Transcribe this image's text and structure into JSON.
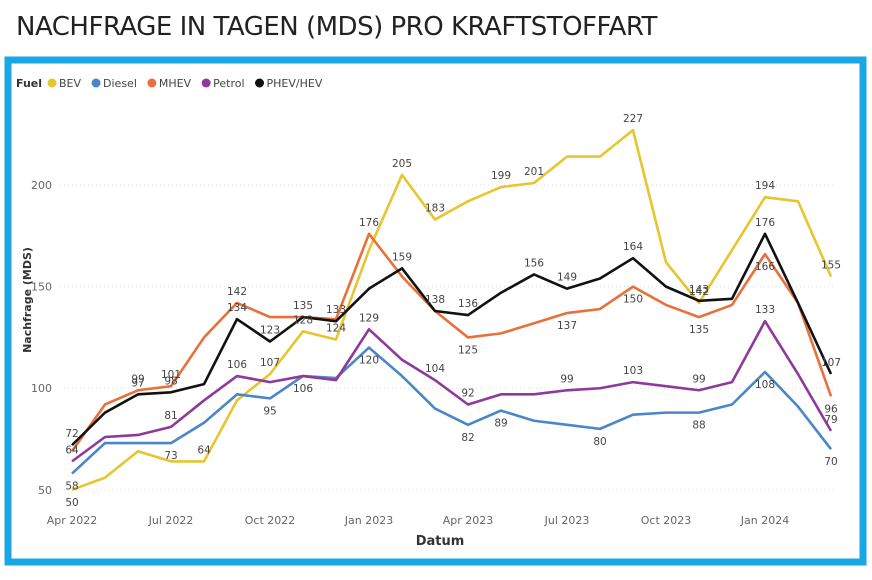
{
  "chart_data": {
    "type": "line",
    "title": "NACHFRAGE IN TAGEN (MDS) PRO KRAFTSTOFFART",
    "legend_title": "Fuel",
    "x_label": "Datum",
    "y_label": "Nachfrage (MDS)",
    "categories": [
      "Apr 2022",
      null,
      null,
      "Jul 2022",
      null,
      null,
      "Oct 2022",
      null,
      null,
      "Jan 2023",
      null,
      null,
      "Apr 2023",
      null,
      null,
      "Jul 2023",
      null,
      null,
      "Oct 2023",
      null,
      null,
      "Jan 2024",
      null,
      null
    ],
    "ylim": [
      45,
      232
    ],
    "yticks": [
      50,
      100,
      150,
      200
    ],
    "grid": true,
    "series": [
      {
        "name": "BEV",
        "color": "#e6c52f",
        "values": [
          50,
          56,
          69,
          64,
          64,
          94,
          107,
          128,
          124,
          168,
          205,
          183,
          192,
          199,
          201,
          214,
          214,
          227,
          162,
          142,
          168,
          194,
          192,
          155
        ],
        "value_labels": [
          "50",
          null,
          null,
          null,
          "64",
          null,
          "107",
          "128",
          "124",
          null,
          "205",
          "183",
          null,
          "199",
          "201",
          null,
          null,
          "227",
          null,
          "142",
          null,
          "194",
          null,
          "155"
        ]
      },
      {
        "name": "Diesel",
        "color": "#4a86c8",
        "values": [
          58,
          73,
          73,
          73,
          83,
          97,
          95,
          106,
          105,
          120,
          106,
          90,
          82,
          89,
          84,
          82,
          80,
          87,
          88,
          88,
          92,
          108,
          91,
          70
        ],
        "value_labels": [
          "58",
          null,
          null,
          "73",
          null,
          null,
          "95",
          "106",
          null,
          "120",
          null,
          null,
          "82",
          "89",
          null,
          null,
          "80",
          null,
          null,
          "88",
          null,
          "108",
          null,
          "70"
        ]
      },
      {
        "name": "MHEV",
        "color": "#e8703a",
        "values": [
          69,
          92,
          99,
          101,
          125,
          142,
          135,
          135,
          134,
          176,
          155,
          138,
          125,
          127,
          132,
          137,
          139,
          150,
          141,
          135,
          141,
          166,
          142,
          96
        ],
        "value_labels": [
          null,
          null,
          "99",
          "101",
          null,
          "142",
          null,
          null,
          null,
          "176",
          null,
          null,
          "125",
          null,
          null,
          "137",
          null,
          "150",
          null,
          "135",
          null,
          "166",
          null,
          "96"
        ]
      },
      {
        "name": "Petrol",
        "color": "#8e3a9c",
        "values": [
          64,
          76,
          77,
          81,
          94,
          106,
          103,
          106,
          104,
          129,
          114,
          104,
          92,
          97,
          97,
          99,
          100,
          103,
          101,
          99,
          103,
          133,
          107,
          79
        ],
        "value_labels": [
          "64",
          null,
          null,
          "81",
          null,
          "106",
          null,
          null,
          null,
          "129",
          null,
          "104",
          "92",
          null,
          null,
          "99",
          null,
          "103",
          null,
          "99",
          null,
          "133",
          null,
          "79"
        ]
      },
      {
        "name": "PHEV/HEV",
        "color": "#111111",
        "values": [
          72,
          88,
          97,
          98,
          102,
          134,
          123,
          135,
          133,
          149,
          159,
          138,
          136,
          147,
          156,
          149,
          154,
          164,
          150,
          143,
          144,
          176,
          142,
          107
        ],
        "value_labels": [
          "72",
          null,
          "97",
          "98",
          null,
          "134",
          "123",
          "135",
          "133",
          null,
          "159",
          "138",
          "136",
          null,
          "156",
          "149",
          null,
          "164",
          null,
          "143",
          null,
          "176",
          null,
          "107"
        ]
      }
    ]
  }
}
